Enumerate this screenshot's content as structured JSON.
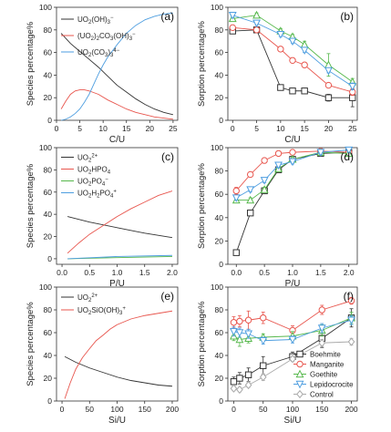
{
  "chart_data": [
    {
      "type": "line",
      "panel_label": "(a)",
      "xlabel": "C/U",
      "ylabel": "Species percentage%",
      "xlim": [
        0,
        26
      ],
      "ylim": [
        0,
        100
      ],
      "xticks": [
        0,
        5,
        10,
        15,
        20,
        25
      ],
      "yticks": [
        0,
        20,
        40,
        60,
        80,
        100
      ],
      "legend_position": "top-left",
      "series": [
        {
          "name": "UO2(OH)3⁻",
          "color": "#333333",
          "x": [
            1,
            3,
            5,
            7,
            9,
            11,
            13,
            15,
            17,
            19,
            21,
            23,
            25
          ],
          "values": [
            77,
            68,
            61,
            54,
            47,
            39,
            31,
            25,
            19,
            14,
            10,
            7,
            5
          ]
        },
        {
          "name": "(UO2)2CO3(OH)3⁻",
          "color": "#e8564e",
          "x": [
            1,
            2,
            3,
            4,
            5,
            6,
            7,
            9,
            11,
            13,
            15,
            17,
            19,
            21,
            23,
            25
          ],
          "values": [
            10,
            17,
            23,
            26,
            27,
            27,
            26,
            23,
            18,
            14,
            10,
            7,
            5,
            3,
            2,
            1
          ]
        },
        {
          "name": "UO2(CO3)3⁴⁻",
          "color": "#4e9ee0",
          "x": [
            1,
            2,
            3,
            4,
            5,
            6,
            7,
            8,
            9,
            10,
            11,
            13,
            15,
            17,
            19,
            21,
            23,
            25
          ],
          "values": [
            0,
            1,
            3,
            6,
            10,
            16,
            23,
            32,
            41,
            49,
            56,
            67,
            77,
            84,
            89,
            92,
            94,
            95
          ]
        }
      ]
    },
    {
      "type": "line",
      "panel_label": "(b)",
      "xlabel": "C/U",
      "ylabel": "Sorption percentage%",
      "xlim": [
        -1,
        26
      ],
      "ylim": [
        0,
        100
      ],
      "xticks": [
        0,
        5,
        10,
        15,
        20,
        25
      ],
      "yticks": [
        0,
        20,
        40,
        60,
        80,
        100
      ],
      "series": [
        {
          "color": "#333333",
          "marker": "square",
          "x": [
            0,
            5,
            10,
            12.5,
            15,
            20,
            25
          ],
          "values": [
            79,
            80,
            29,
            26,
            26,
            20,
            20
          ],
          "errors": [
            2,
            2,
            2,
            2,
            2,
            3,
            8
          ]
        },
        {
          "color": "#e8564e",
          "marker": "circle",
          "x": [
            0,
            5,
            10,
            12.5,
            15,
            20,
            25
          ],
          "values": [
            82,
            80,
            63,
            53,
            49,
            31,
            25
          ],
          "errors": [
            2,
            2,
            2,
            2,
            2,
            2,
            3
          ]
        },
        {
          "color": "#56b84c",
          "marker": "triangle",
          "x": [
            0,
            5,
            10,
            12.5,
            15,
            20,
            25
          ],
          "values": [
            90,
            93,
            79,
            74,
            67,
            49,
            34
          ],
          "errors": [
            2,
            2,
            2,
            2,
            3,
            10,
            3
          ]
        },
        {
          "color": "#4e9ee0",
          "marker": "triangle-down",
          "x": [
            0,
            5,
            10,
            12.5,
            15,
            20,
            25
          ],
          "values": [
            93,
            86,
            76,
            70,
            62,
            44,
            30
          ],
          "errors": [
            2,
            2,
            2,
            2,
            2,
            2,
            3
          ]
        }
      ]
    },
    {
      "type": "line",
      "panel_label": "(c)",
      "xlabel": "P/U",
      "ylabel": "Species percentage%",
      "xlim": [
        -0.1,
        2.1
      ],
      "ylim": [
        -5,
        100
      ],
      "xticks": [
        0.0,
        0.5,
        1.0,
        1.5,
        2.0
      ],
      "yticks": [
        0,
        20,
        40,
        60,
        80,
        100
      ],
      "legend_position": "top-left",
      "series": [
        {
          "name": "UO2²⁺",
          "color": "#333333",
          "x": [
            0.1,
            0.5,
            1.0,
            1.5,
            2.0
          ],
          "values": [
            38,
            33,
            28,
            23,
            19
          ]
        },
        {
          "name": "UO2HPO4",
          "color": "#e8564e",
          "x": [
            0.1,
            0.3,
            0.5,
            0.75,
            1.0,
            1.25,
            1.5,
            1.75,
            2.0
          ],
          "values": [
            5,
            14,
            22,
            30,
            38,
            45,
            51,
            57,
            61
          ]
        },
        {
          "name": "UO2PO4⁻",
          "color": "#56b84c",
          "x": [
            0.1,
            1.0,
            2.0
          ],
          "values": [
            0,
            1,
            2
          ]
        },
        {
          "name": "UO2H2PO4⁺",
          "color": "#4e9ee0",
          "x": [
            0.1,
            1.0,
            2.0
          ],
          "values": [
            0,
            2,
            3
          ]
        }
      ]
    },
    {
      "type": "line",
      "panel_label": "(d)",
      "xlabel": "P/U",
      "ylabel": "Sorption percentage%",
      "xlim": [
        -0.15,
        2.15
      ],
      "ylim": [
        0,
        100
      ],
      "xticks": [
        0.0,
        0.5,
        1.0,
        1.5,
        2.0
      ],
      "yticks": [
        0,
        20,
        40,
        60,
        80,
        100
      ],
      "series": [
        {
          "color": "#333333",
          "marker": "square",
          "x": [
            0,
            0.25,
            0.5,
            0.75,
            1.0,
            1.5,
            2.0
          ],
          "values": [
            10,
            44,
            63,
            81,
            90,
            95,
            96
          ],
          "errors": [
            1,
            2,
            2,
            2,
            2,
            2,
            2
          ]
        },
        {
          "color": "#e8564e",
          "marker": "circle",
          "x": [
            0,
            0.25,
            0.5,
            0.75,
            1.0,
            1.5,
            2.0
          ],
          "values": [
            63,
            77,
            89,
            95,
            96,
            97,
            96
          ],
          "errors": [
            3,
            2,
            2,
            1,
            1,
            1,
            1
          ]
        },
        {
          "color": "#56b84c",
          "marker": "triangle",
          "x": [
            0,
            0.25,
            0.5,
            0.75,
            1.0,
            1.5,
            2.0
          ],
          "values": [
            55,
            55,
            64,
            82,
            90,
            96,
            95
          ],
          "errors": [
            2,
            2,
            2,
            2,
            2,
            2,
            2
          ]
        },
        {
          "color": "#4e9ee0",
          "marker": "triangle-down",
          "x": [
            0,
            0.25,
            0.5,
            0.75,
            1.0,
            1.5,
            2.0
          ],
          "values": [
            57,
            64,
            72,
            85,
            88,
            96,
            98
          ],
          "errors": [
            2,
            2,
            2,
            2,
            2,
            2,
            2
          ]
        }
      ]
    },
    {
      "type": "line",
      "panel_label": "(e)",
      "xlabel": "Si/U",
      "ylabel": "Species percentage%",
      "xlim": [
        -10,
        210
      ],
      "ylim": [
        0,
        100
      ],
      "xticks": [
        0,
        50,
        100,
        150,
        200
      ],
      "yticks": [
        0,
        20,
        40,
        60,
        80,
        100
      ],
      "legend_position": "top-left",
      "series": [
        {
          "name": "UO2²⁺",
          "color": "#333333",
          "x": [
            5,
            25,
            50,
            75,
            100,
            125,
            150,
            175,
            200
          ],
          "values": [
            39,
            34,
            29,
            25,
            21,
            18,
            16,
            14,
            13
          ]
        },
        {
          "name": "UO2SiO(OH)3⁺",
          "color": "#e8564e",
          "x": [
            5,
            15,
            25,
            37,
            50,
            62,
            75,
            87,
            100,
            125,
            150,
            175,
            200
          ],
          "values": [
            2,
            16,
            28,
            38,
            46,
            53,
            58,
            63,
            67,
            72,
            75,
            77,
            79
          ]
        }
      ]
    },
    {
      "type": "line",
      "panel_label": "(f)",
      "xlabel": "Si/U",
      "ylabel": "Sorption percentage%",
      "xlim": [
        -10,
        210
      ],
      "ylim": [
        0,
        100
      ],
      "xticks": [
        0,
        50,
        100,
        150,
        200
      ],
      "yticks": [
        0,
        20,
        40,
        60,
        80,
        100
      ],
      "legend_position": "bottom-right",
      "series": [
        {
          "name": "Boehmite",
          "color": "#333333",
          "marker": "square",
          "x": [
            0,
            10,
            25,
            50,
            100,
            150,
            200
          ],
          "values": [
            17,
            20,
            23,
            31,
            39,
            55,
            73
          ],
          "errors": [
            4,
            5,
            6,
            8,
            4,
            8,
            8
          ]
        },
        {
          "name": "Manganite",
          "color": "#e8564e",
          "marker": "circle",
          "x": [
            0,
            10,
            25,
            50,
            100,
            150,
            200
          ],
          "values": [
            69,
            70,
            71,
            73,
            62,
            80,
            88
          ],
          "errors": [
            5,
            5,
            8,
            5,
            4,
            4,
            3
          ]
        },
        {
          "name": "Goethite",
          "color": "#56b84c",
          "marker": "triangle",
          "x": [
            0,
            10,
            25,
            50,
            100,
            150,
            200
          ],
          "values": [
            57,
            54,
            55,
            56,
            57,
            62,
            73
          ],
          "errors": [
            4,
            6,
            4,
            3,
            4,
            5,
            5
          ]
        },
        {
          "name": "Lepidocrocite",
          "color": "#4e9ee0",
          "marker": "triangle-down",
          "x": [
            0,
            10,
            25,
            50,
            100,
            150,
            200
          ],
          "values": [
            61,
            60,
            59,
            53,
            54,
            64,
            71
          ],
          "errors": [
            4,
            4,
            4,
            3,
            3,
            4,
            4
          ]
        },
        {
          "name": "Control",
          "color": "#aaaaaa",
          "marker": "diamond",
          "x": [
            0,
            10,
            25,
            50,
            100,
            150,
            200
          ],
          "values": [
            11,
            10,
            14,
            21,
            37,
            51,
            52
          ],
          "errors": [
            2,
            2,
            2,
            3,
            2,
            3,
            3
          ]
        }
      ]
    }
  ]
}
